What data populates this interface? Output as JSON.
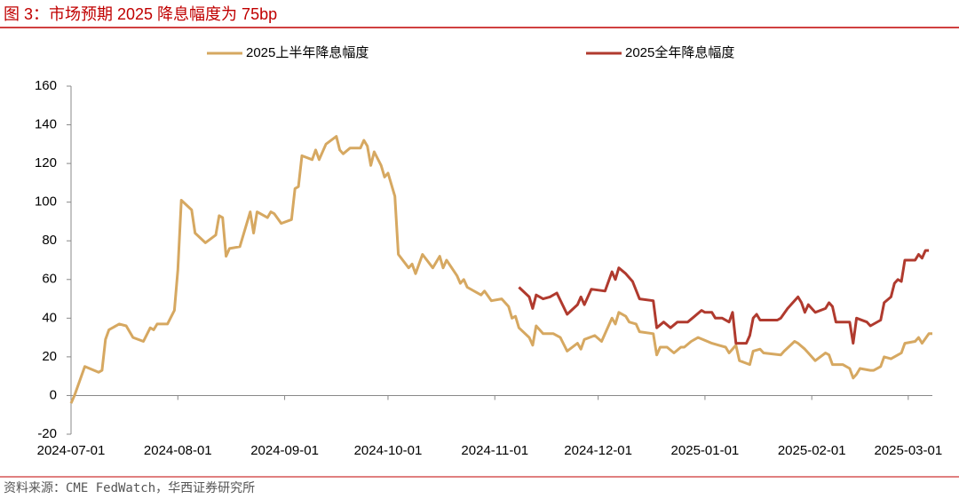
{
  "chart_data": {
    "type": "line",
    "title": "图 3：市场预期 2025 降息幅度为 75bp",
    "source": "资料来源：CME FedWatch，华西证券研究所",
    "xlim": [
      "2024-07-01",
      "2025-03-08"
    ],
    "xticks": [
      "2024-07-01",
      "2024-08-01",
      "2024-09-01",
      "2024-10-01",
      "2024-11-01",
      "2024-12-01",
      "2025-01-01",
      "2025-02-01",
      "2025-03-01"
    ],
    "ylim": [
      -20,
      160
    ],
    "yticks": [
      -20,
      0,
      20,
      40,
      60,
      80,
      100,
      120,
      140,
      160
    ],
    "grid": false,
    "legend": "top",
    "series": [
      {
        "name": "2025上半年降息幅度",
        "color": "#d6a861",
        "x": [
          "2024-07-01",
          "2024-07-02",
          "2024-07-05",
          "2024-07-09",
          "2024-07-10",
          "2024-07-11",
          "2024-07-12",
          "2024-07-15",
          "2024-07-17",
          "2024-07-19",
          "2024-07-22",
          "2024-07-24",
          "2024-07-25",
          "2024-07-26",
          "2024-07-29",
          "2024-07-31",
          "2024-08-01",
          "2024-08-02",
          "2024-08-05",
          "2024-08-06",
          "2024-08-09",
          "2024-08-12",
          "2024-08-13",
          "2024-08-14",
          "2024-08-15",
          "2024-08-16",
          "2024-08-19",
          "2024-08-22",
          "2024-08-23",
          "2024-08-24",
          "2024-08-27",
          "2024-08-28",
          "2024-08-29",
          "2024-08-31",
          "2024-09-03",
          "2024-09-04",
          "2024-09-05",
          "2024-09-06",
          "2024-09-09",
          "2024-09-10",
          "2024-09-11",
          "2024-09-13",
          "2024-09-16",
          "2024-09-17",
          "2024-09-18",
          "2024-09-20",
          "2024-09-23",
          "2024-09-24",
          "2024-09-25",
          "2024-09-26",
          "2024-09-27",
          "2024-09-29",
          "2024-09-30",
          "2024-10-01",
          "2024-10-03",
          "2024-10-04",
          "2024-10-07",
          "2024-10-08",
          "2024-10-09",
          "2024-10-11",
          "2024-10-14",
          "2024-10-16",
          "2024-10-17",
          "2024-10-18",
          "2024-10-21",
          "2024-10-22",
          "2024-10-23",
          "2024-10-24",
          "2024-10-28",
          "2024-10-29",
          "2024-10-31",
          "2024-11-03",
          "2024-11-05",
          "2024-11-06",
          "2024-11-07",
          "2024-11-08",
          "2024-11-11",
          "2024-11-12",
          "2024-11-13",
          "2024-11-15",
          "2024-11-18",
          "2024-11-20",
          "2024-11-22",
          "2024-11-25",
          "2024-11-26",
          "2024-11-27",
          "2024-11-30",
          "2024-12-02",
          "2024-12-04",
          "2024-12-05",
          "2024-12-06",
          "2024-12-07",
          "2024-12-09",
          "2024-12-10",
          "2024-12-12",
          "2024-12-13",
          "2024-12-17",
          "2024-12-18",
          "2024-12-19",
          "2024-12-21",
          "2024-12-23",
          "2024-12-25",
          "2024-12-26",
          "2024-12-28",
          "2024-12-30",
          "2025-01-03",
          "2025-01-05",
          "2025-01-07",
          "2025-01-08",
          "2025-01-10",
          "2025-01-11",
          "2025-01-14",
          "2025-01-15",
          "2025-01-17",
          "2025-01-18",
          "2025-01-23",
          "2025-01-24",
          "2025-01-27",
          "2025-01-28",
          "2025-01-30",
          "2025-01-31",
          "2025-02-02",
          "2025-02-05",
          "2025-02-06",
          "2025-02-07",
          "2025-02-10",
          "2025-02-12",
          "2025-02-13",
          "2025-02-14",
          "2025-02-15",
          "2025-02-18",
          "2025-02-19",
          "2025-02-21",
          "2025-02-22",
          "2025-02-24",
          "2025-02-26",
          "2025-02-27",
          "2025-02-28",
          "2025-03-03",
          "2025-03-04",
          "2025-03-05",
          "2025-03-07",
          "2025-03-08"
        ],
        "values": [
          -4,
          0,
          15,
          12,
          13,
          29,
          34,
          37,
          36,
          30,
          28,
          35,
          34,
          37,
          37,
          44,
          65,
          101,
          96,
          84,
          79,
          83,
          93,
          92,
          72,
          76,
          77,
          95,
          84,
          95,
          92,
          95,
          94,
          89,
          91,
          107,
          108,
          124,
          122,
          127,
          122,
          130,
          134,
          127,
          125,
          128,
          128,
          132,
          129,
          119,
          126,
          119,
          113,
          115,
          103,
          73,
          66,
          68,
          63,
          73,
          66,
          72,
          66,
          70,
          62,
          58,
          60,
          56,
          52,
          54,
          49,
          50,
          46,
          40,
          41,
          35,
          30,
          26,
          36,
          32,
          32,
          30,
          23,
          27,
          24,
          29,
          31,
          28,
          36,
          40,
          37,
          43,
          41,
          38,
          37,
          33,
          32,
          21,
          25,
          25,
          22,
          25,
          25,
          28,
          30,
          27,
          26,
          25,
          22,
          26,
          18,
          16,
          23,
          24,
          22,
          21,
          23,
          28,
          27,
          24,
          22,
          18,
          22,
          21,
          16,
          16,
          14,
          9,
          11,
          14,
          13,
          13,
          15,
          20,
          19,
          21,
          22,
          27,
          28,
          30,
          27,
          32,
          32
        ]
      },
      {
        "name": "2025全年降息幅度",
        "color": "#b03a2e",
        "x": [
          "2024-11-08",
          "2024-11-11",
          "2024-11-12",
          "2024-11-13",
          "2024-11-15",
          "2024-11-17",
          "2024-11-19",
          "2024-11-22",
          "2024-11-25",
          "2024-11-26",
          "2024-11-27",
          "2024-11-29",
          "2024-12-03",
          "2024-12-05",
          "2024-12-06",
          "2024-12-07",
          "2024-12-09",
          "2024-12-11",
          "2024-12-13",
          "2024-12-17",
          "2024-12-18",
          "2024-12-20",
          "2024-12-22",
          "2024-12-24",
          "2024-12-27",
          "2024-12-29",
          "2024-12-31",
          "2025-01-01",
          "2025-01-03",
          "2025-01-04",
          "2025-01-06",
          "2025-01-08",
          "2025-01-09",
          "2025-01-10",
          "2025-01-13",
          "2025-01-14",
          "2025-01-15",
          "2025-01-16",
          "2025-01-17",
          "2025-01-22",
          "2025-01-23",
          "2025-01-25",
          "2025-01-28",
          "2025-01-29",
          "2025-01-30",
          "2025-01-31",
          "2025-02-02",
          "2025-02-05",
          "2025-02-06",
          "2025-02-07",
          "2025-02-08",
          "2025-02-10",
          "2025-02-12",
          "2025-02-13",
          "2025-02-14",
          "2025-02-17",
          "2025-02-18",
          "2025-02-21",
          "2025-02-22",
          "2025-02-24",
          "2025-02-25",
          "2025-02-26",
          "2025-02-27",
          "2025-02-28",
          "2025-03-03",
          "2025-03-04",
          "2025-03-05",
          "2025-03-06",
          "2025-03-07"
        ],
        "values": [
          56,
          51,
          45,
          52,
          50,
          51,
          53,
          42,
          47,
          51,
          47,
          55,
          54,
          64,
          60,
          66,
          63,
          59,
          50,
          49,
          35,
          38,
          35,
          38,
          38,
          41,
          44,
          43,
          43,
          40,
          40,
          38,
          43,
          27,
          27,
          31,
          40,
          42,
          39,
          39,
          40,
          45,
          51,
          48,
          43,
          47,
          43,
          45,
          48,
          46,
          38,
          38,
          38,
          27,
          40,
          38,
          36,
          39,
          48,
          51,
          58,
          60,
          59,
          70,
          70,
          73,
          71,
          75,
          75
        ]
      }
    ]
  }
}
